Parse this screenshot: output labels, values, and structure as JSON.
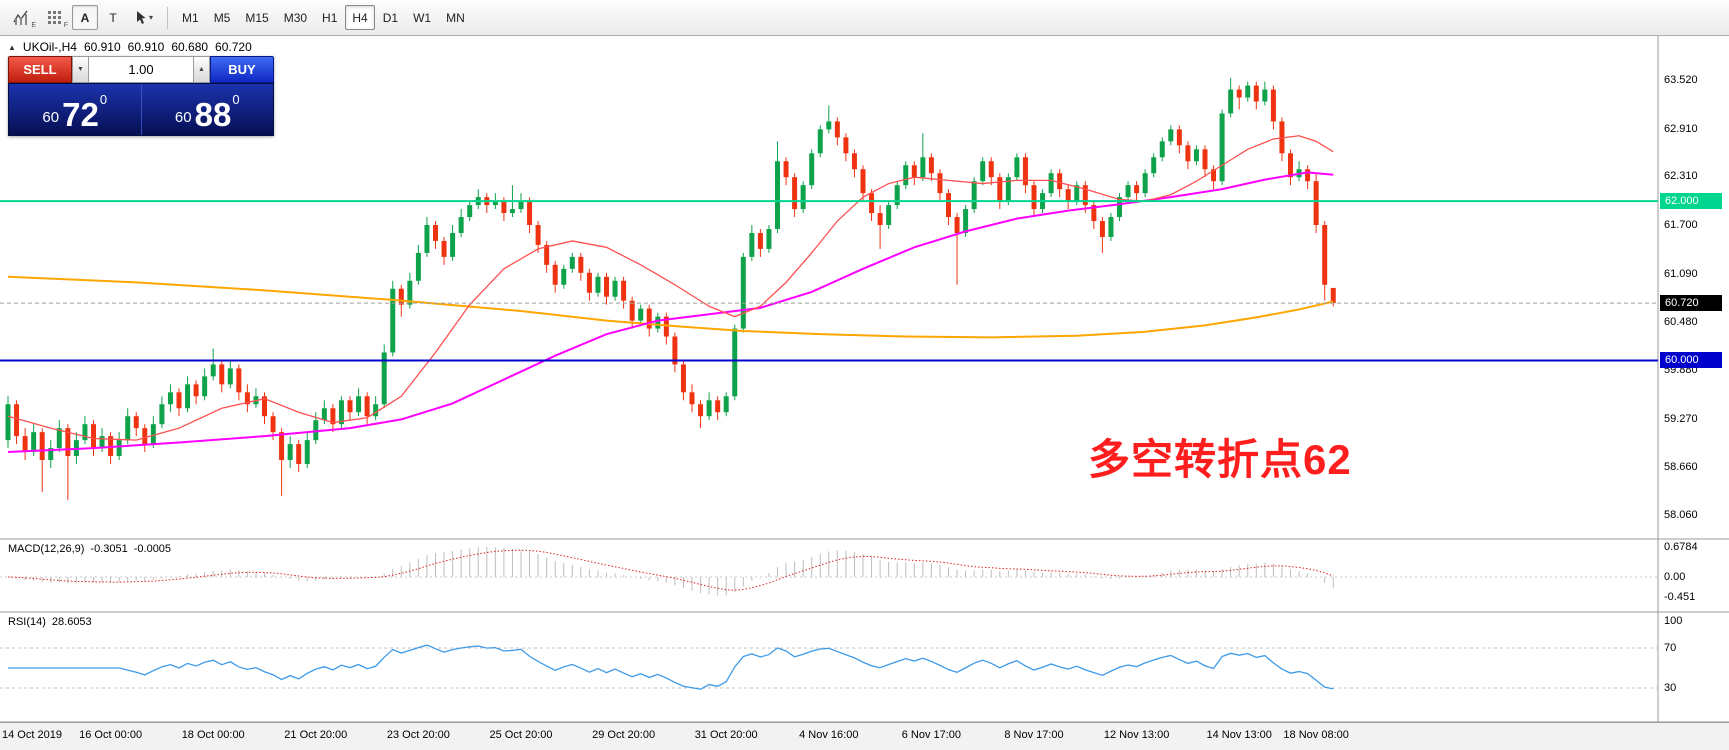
{
  "toolbar": {
    "icon_buttons": [
      {
        "name": "charts-icon",
        "sub": "E"
      },
      {
        "name": "grid-icon",
        "sub": "F"
      }
    ],
    "a_button": "A",
    "t_button": "T",
    "cursor_caret": "▾",
    "timeframes": [
      "M1",
      "M5",
      "M15",
      "M30",
      "H1",
      "H4",
      "D1",
      "W1",
      "MN"
    ],
    "active_timeframe": "H4"
  },
  "chart_header": {
    "marker": "▲",
    "symbol": "UKOil-,H4",
    "open": "60.910",
    "high": "60.910",
    "low": "60.680",
    "close": "60.720"
  },
  "trade_panel": {
    "sell_label": "SELL",
    "buy_label": "BUY",
    "volume": "1.00",
    "vol_down": "▼",
    "vol_up": "▲",
    "sell_price": {
      "small": "60",
      "big": "72",
      "sup": "0"
    },
    "buy_price": {
      "small": "60",
      "big": "88",
      "sup": "0"
    }
  },
  "annotation": {
    "text": "多空转折点62",
    "color": "#ff1e1e"
  },
  "price_axis": {
    "labels": [
      "63.520",
      "62.910",
      "62.310",
      "61.700",
      "61.090",
      "60.480",
      "59.880",
      "59.270",
      "58.660",
      "58.060"
    ],
    "tags": [
      {
        "text": "62.000",
        "bg": "#00d68f"
      },
      {
        "text": "60.000",
        "bg": "#0000cd"
      },
      {
        "text": "60.720",
        "bg": "#000000"
      }
    ]
  },
  "macd_panel": {
    "label": "MACD(12,26,9)",
    "value_main": "-0.3051",
    "value_signal": "-0.0005",
    "axis": [
      "0.6784",
      "0.00",
      "-0.451"
    ]
  },
  "rsi_panel": {
    "label": "RSI(14)",
    "value": "28.6053",
    "axis": [
      "100",
      "70",
      "30"
    ],
    "levels": [
      70,
      30
    ]
  },
  "time_axis": {
    "labels": [
      {
        "label": "14 Oct 2019",
        "i": 0
      },
      {
        "label": "16 Oct 00:00",
        "i": 12
      },
      {
        "label": "18 Oct 00:00",
        "i": 24
      },
      {
        "label": "21 Oct 20:00",
        "i": 36
      },
      {
        "label": "23 Oct 20:00",
        "i": 48
      },
      {
        "label": "25 Oct 20:00",
        "i": 60
      },
      {
        "label": "29 Oct 20:00",
        "i": 72
      },
      {
        "label": "31 Oct 20:00",
        "i": 84
      },
      {
        "label": "4 Nov 16:00",
        "i": 96
      },
      {
        "label": "6 Nov 17:00",
        "i": 108
      },
      {
        "label": "8 Nov 17:00",
        "i": 120
      },
      {
        "label": "12 Nov 13:00",
        "i": 132
      },
      {
        "label": "14 Nov 13:00",
        "i": 144
      },
      {
        "label": "18 Nov 08:00",
        "i": 153
      }
    ]
  },
  "chart_data": {
    "type": "candlestick",
    "symbol": "UKOil",
    "timeframe": "H4",
    "ylim": [
      57.76,
      64.07
    ],
    "ohlc": [
      [
        59.0,
        59.55,
        58.9,
        59.45
      ],
      [
        59.45,
        59.5,
        58.95,
        59.05
      ],
      [
        59.05,
        59.15,
        58.75,
        58.85
      ],
      [
        58.85,
        59.2,
        58.8,
        59.1
      ],
      [
        59.1,
        59.15,
        58.35,
        58.75
      ],
      [
        58.75,
        59.0,
        58.65,
        58.9
      ],
      [
        58.9,
        59.25,
        58.85,
        59.15
      ],
      [
        59.15,
        59.2,
        58.25,
        58.8
      ],
      [
        58.8,
        59.1,
        58.7,
        59.0
      ],
      [
        59.0,
        59.3,
        58.95,
        59.2
      ],
      [
        59.2,
        59.25,
        58.8,
        58.9
      ],
      [
        58.9,
        59.15,
        58.85,
        59.05
      ],
      [
        59.05,
        59.1,
        58.7,
        58.8
      ],
      [
        58.8,
        59.1,
        58.75,
        59.0
      ],
      [
        59.0,
        59.4,
        58.95,
        59.3
      ],
      [
        59.3,
        59.35,
        59.05,
        59.15
      ],
      [
        59.15,
        59.2,
        58.85,
        58.95
      ],
      [
        58.95,
        59.3,
        58.9,
        59.2
      ],
      [
        59.2,
        59.55,
        59.15,
        59.45
      ],
      [
        59.45,
        59.7,
        59.35,
        59.6
      ],
      [
        59.6,
        59.65,
        59.3,
        59.4
      ],
      [
        59.4,
        59.8,
        59.35,
        59.7
      ],
      [
        59.7,
        59.75,
        59.45,
        59.55
      ],
      [
        59.55,
        59.9,
        59.5,
        59.8
      ],
      [
        59.8,
        60.15,
        59.75,
        59.95
      ],
      [
        59.95,
        60.0,
        59.6,
        59.7
      ],
      [
        59.7,
        60.0,
        59.65,
        59.9
      ],
      [
        59.9,
        59.95,
        59.5,
        59.6
      ],
      [
        59.6,
        59.7,
        59.35,
        59.45
      ],
      [
        59.45,
        59.65,
        59.4,
        59.55
      ],
      [
        59.55,
        59.6,
        59.2,
        59.3
      ],
      [
        59.3,
        59.35,
        59.0,
        59.1
      ],
      [
        59.1,
        59.15,
        58.3,
        58.75
      ],
      [
        58.75,
        59.05,
        58.65,
        58.95
      ],
      [
        58.95,
        59.0,
        58.6,
        58.7
      ],
      [
        58.7,
        59.1,
        58.65,
        59.0
      ],
      [
        59.0,
        59.35,
        58.95,
        59.25
      ],
      [
        59.25,
        59.5,
        59.2,
        59.4
      ],
      [
        59.4,
        59.45,
        59.1,
        59.2
      ],
      [
        59.2,
        59.55,
        59.15,
        59.5
      ],
      [
        59.5,
        59.55,
        59.25,
        59.35
      ],
      [
        59.35,
        59.65,
        59.3,
        59.55
      ],
      [
        59.55,
        59.6,
        59.2,
        59.3
      ],
      [
        59.3,
        59.55,
        59.25,
        59.45
      ],
      [
        59.45,
        60.2,
        59.4,
        60.1
      ],
      [
        60.1,
        61.0,
        60.05,
        60.9
      ],
      [
        60.9,
        60.95,
        60.55,
        60.7
      ],
      [
        60.7,
        61.1,
        60.65,
        61.0
      ],
      [
        61.0,
        61.45,
        60.95,
        61.35
      ],
      [
        61.35,
        61.8,
        61.3,
        61.7
      ],
      [
        61.7,
        61.75,
        61.4,
        61.5
      ],
      [
        61.5,
        61.55,
        61.2,
        61.3
      ],
      [
        61.3,
        61.7,
        61.25,
        61.6
      ],
      [
        61.6,
        61.9,
        61.55,
        61.8
      ],
      [
        61.8,
        62.0,
        61.75,
        61.95
      ],
      [
        61.95,
        62.15,
        61.9,
        62.05
      ],
      [
        62.05,
        62.1,
        61.85,
        61.95
      ],
      [
        61.95,
        62.1,
        61.9,
        62.0
      ],
      [
        62.0,
        62.05,
        61.75,
        61.85
      ],
      [
        61.85,
        62.2,
        61.8,
        61.9
      ],
      [
        61.9,
        62.1,
        61.85,
        62.0
      ],
      [
        62.0,
        62.05,
        61.6,
        61.7
      ],
      [
        61.7,
        61.75,
        61.35,
        61.45
      ],
      [
        61.45,
        61.5,
        61.1,
        61.2
      ],
      [
        61.2,
        61.25,
        60.85,
        60.95
      ],
      [
        60.95,
        61.2,
        60.9,
        61.15
      ],
      [
        61.15,
        61.35,
        61.1,
        61.3
      ],
      [
        61.3,
        61.35,
        61.0,
        61.1
      ],
      [
        61.1,
        61.15,
        60.75,
        60.85
      ],
      [
        60.85,
        61.1,
        60.8,
        61.05
      ],
      [
        61.05,
        61.1,
        60.7,
        60.8
      ],
      [
        60.8,
        61.05,
        60.75,
        61.0
      ],
      [
        61.0,
        61.05,
        60.65,
        60.75
      ],
      [
        60.75,
        60.8,
        60.4,
        60.5
      ],
      [
        60.5,
        60.7,
        60.45,
        60.65
      ],
      [
        60.65,
        60.7,
        60.3,
        60.4
      ],
      [
        60.4,
        60.6,
        60.35,
        60.55
      ],
      [
        60.55,
        60.6,
        60.2,
        60.3
      ],
      [
        60.3,
        60.35,
        59.85,
        59.95
      ],
      [
        59.95,
        60.0,
        59.5,
        59.6
      ],
      [
        59.6,
        59.7,
        59.35,
        59.45
      ],
      [
        59.45,
        59.5,
        59.15,
        59.3
      ],
      [
        59.3,
        59.6,
        59.25,
        59.5
      ],
      [
        59.5,
        59.55,
        59.25,
        59.35
      ],
      [
        59.35,
        59.6,
        59.3,
        59.55
      ],
      [
        59.55,
        60.45,
        59.5,
        60.4
      ],
      [
        60.4,
        61.35,
        60.35,
        61.3
      ],
      [
        61.3,
        61.7,
        61.25,
        61.6
      ],
      [
        61.6,
        61.65,
        61.3,
        61.4
      ],
      [
        61.4,
        61.7,
        61.35,
        61.65
      ],
      [
        61.65,
        62.75,
        61.6,
        62.5
      ],
      [
        62.5,
        62.55,
        62.2,
        62.3
      ],
      [
        62.3,
        62.35,
        61.8,
        61.9
      ],
      [
        61.9,
        62.25,
        61.85,
        62.2
      ],
      [
        62.2,
        62.65,
        62.15,
        62.6
      ],
      [
        62.6,
        62.95,
        62.55,
        62.9
      ],
      [
        62.9,
        63.2,
        62.85,
        63.0
      ],
      [
        63.0,
        63.05,
        62.7,
        62.8
      ],
      [
        62.8,
        62.85,
        62.5,
        62.6
      ],
      [
        62.6,
        62.65,
        62.3,
        62.4
      ],
      [
        62.4,
        62.45,
        62.0,
        62.1
      ],
      [
        62.1,
        62.15,
        61.75,
        61.85
      ],
      [
        61.85,
        61.95,
        61.4,
        61.7
      ],
      [
        61.7,
        62.0,
        61.65,
        61.95
      ],
      [
        61.95,
        62.25,
        61.9,
        62.2
      ],
      [
        62.2,
        62.5,
        62.15,
        62.45
      ],
      [
        62.45,
        62.5,
        62.2,
        62.3
      ],
      [
        62.3,
        62.85,
        62.25,
        62.55
      ],
      [
        62.55,
        62.6,
        62.25,
        62.35
      ],
      [
        62.35,
        62.4,
        62.0,
        62.1
      ],
      [
        62.1,
        62.15,
        61.7,
        61.8
      ],
      [
        61.8,
        61.85,
        60.95,
        61.6
      ],
      [
        61.6,
        61.95,
        61.55,
        61.9
      ],
      [
        61.9,
        62.3,
        61.85,
        62.25
      ],
      [
        62.25,
        62.55,
        62.2,
        62.5
      ],
      [
        62.5,
        62.55,
        62.2,
        62.3
      ],
      [
        62.3,
        62.35,
        61.9,
        62.0
      ],
      [
        62.0,
        62.35,
        61.95,
        62.3
      ],
      [
        62.3,
        62.6,
        62.25,
        62.55
      ],
      [
        62.55,
        62.6,
        62.1,
        62.2
      ],
      [
        62.2,
        62.25,
        61.8,
        61.9
      ],
      [
        61.9,
        62.15,
        61.85,
        62.1
      ],
      [
        62.1,
        62.4,
        62.05,
        62.35
      ],
      [
        62.35,
        62.4,
        62.05,
        62.15
      ],
      [
        62.15,
        62.2,
        61.9,
        62.0
      ],
      [
        62.0,
        62.25,
        61.95,
        62.2
      ],
      [
        62.2,
        62.25,
        61.85,
        61.95
      ],
      [
        61.95,
        62.0,
        61.65,
        61.75
      ],
      [
        61.75,
        61.8,
        61.35,
        61.55
      ],
      [
        61.55,
        61.85,
        61.5,
        61.8
      ],
      [
        61.8,
        62.1,
        61.75,
        62.05
      ],
      [
        62.05,
        62.25,
        62.0,
        62.2
      ],
      [
        62.2,
        62.25,
        62.0,
        62.1
      ],
      [
        62.1,
        62.4,
        62.05,
        62.35
      ],
      [
        62.35,
        62.6,
        62.3,
        62.55
      ],
      [
        62.55,
        62.8,
        62.5,
        62.75
      ],
      [
        62.75,
        62.95,
        62.7,
        62.9
      ],
      [
        62.9,
        62.95,
        62.6,
        62.7
      ],
      [
        62.7,
        62.75,
        62.4,
        62.5
      ],
      [
        62.5,
        62.7,
        62.45,
        62.65
      ],
      [
        62.65,
        62.7,
        62.3,
        62.4
      ],
      [
        62.4,
        62.45,
        62.15,
        62.25
      ],
      [
        62.25,
        63.15,
        62.2,
        63.1
      ],
      [
        63.1,
        63.55,
        63.05,
        63.4
      ],
      [
        63.4,
        63.45,
        63.15,
        63.3
      ],
      [
        63.3,
        63.5,
        63.25,
        63.45
      ],
      [
        63.45,
        63.5,
        63.15,
        63.25
      ],
      [
        63.25,
        63.5,
        63.2,
        63.4
      ],
      [
        63.4,
        63.45,
        62.9,
        63.0
      ],
      [
        63.0,
        63.05,
        62.5,
        62.6
      ],
      [
        62.6,
        62.65,
        62.2,
        62.3
      ],
      [
        62.3,
        62.5,
        62.25,
        62.4
      ],
      [
        62.4,
        62.45,
        62.15,
        62.25
      ],
      [
        62.25,
        62.35,
        61.6,
        61.7
      ],
      [
        61.7,
        61.75,
        60.75,
        60.95
      ],
      [
        60.91,
        60.91,
        60.68,
        60.72
      ]
    ],
    "ma_orange": [
      [
        0,
        61.05
      ],
      [
        15,
        60.98
      ],
      [
        30,
        60.88
      ],
      [
        45,
        60.76
      ],
      [
        60,
        60.62
      ],
      [
        70,
        60.5
      ],
      [
        78,
        60.43
      ],
      [
        86,
        60.37
      ],
      [
        95,
        60.33
      ],
      [
        105,
        60.3
      ],
      [
        115,
        60.29
      ],
      [
        125,
        60.31
      ],
      [
        133,
        60.36
      ],
      [
        140,
        60.44
      ],
      [
        146,
        60.54
      ],
      [
        151,
        60.64
      ],
      [
        155,
        60.74
      ]
    ],
    "ma_magenta": [
      [
        0,
        58.85
      ],
      [
        10,
        58.9
      ],
      [
        20,
        58.97
      ],
      [
        30,
        59.05
      ],
      [
        40,
        59.15
      ],
      [
        46,
        59.26
      ],
      [
        52,
        59.46
      ],
      [
        58,
        59.76
      ],
      [
        64,
        60.06
      ],
      [
        70,
        60.33
      ],
      [
        76,
        60.5
      ],
      [
        82,
        60.58
      ],
      [
        88,
        60.66
      ],
      [
        94,
        60.86
      ],
      [
        100,
        61.15
      ],
      [
        106,
        61.42
      ],
      [
        112,
        61.62
      ],
      [
        118,
        61.78
      ],
      [
        124,
        61.88
      ],
      [
        130,
        61.96
      ],
      [
        136,
        62.05
      ],
      [
        142,
        62.15
      ],
      [
        147,
        62.27
      ],
      [
        152,
        62.36
      ],
      [
        155,
        62.33
      ]
    ],
    "ma_red": [
      [
        0,
        59.3
      ],
      [
        5,
        59.15
      ],
      [
        10,
        59.02
      ],
      [
        15,
        59.0
      ],
      [
        20,
        59.15
      ],
      [
        25,
        59.4
      ],
      [
        30,
        59.52
      ],
      [
        34,
        59.35
      ],
      [
        38,
        59.22
      ],
      [
        42,
        59.28
      ],
      [
        46,
        59.55
      ],
      [
        50,
        60.1
      ],
      [
        54,
        60.7
      ],
      [
        58,
        61.15
      ],
      [
        62,
        61.4
      ],
      [
        66,
        61.5
      ],
      [
        70,
        61.42
      ],
      [
        74,
        61.2
      ],
      [
        78,
        60.95
      ],
      [
        82,
        60.68
      ],
      [
        85,
        60.55
      ],
      [
        88,
        60.68
      ],
      [
        91,
        60.98
      ],
      [
        94,
        61.35
      ],
      [
        97,
        61.75
      ],
      [
        100,
        62.05
      ],
      [
        103,
        62.22
      ],
      [
        106,
        62.3
      ],
      [
        110,
        62.26
      ],
      [
        114,
        62.22
      ],
      [
        118,
        62.26
      ],
      [
        122,
        62.26
      ],
      [
        126,
        62.15
      ],
      [
        130,
        62.02
      ],
      [
        133,
        62.0
      ],
      [
        136,
        62.08
      ],
      [
        139,
        62.25
      ],
      [
        142,
        62.45
      ],
      [
        145,
        62.65
      ],
      [
        148,
        62.78
      ],
      [
        151,
        62.82
      ],
      [
        153,
        62.75
      ],
      [
        155,
        62.62
      ]
    ],
    "hlines": [
      {
        "price": 62.0,
        "color": "#00d68f",
        "width": 2
      },
      {
        "price": 60.0,
        "color": "#0000cd",
        "width": 2
      },
      {
        "price": 60.72,
        "color": "#9e9e9e",
        "width": 1,
        "dash": "4,3"
      }
    ],
    "colors": {
      "up": "#0ea24a",
      "down": "#ef3311",
      "macd_hist": "#bdbdbd",
      "macd_signal": "#e02020",
      "rsi": "#3d9ae8",
      "ma_orange": "#ffa500",
      "ma_magenta": "#ff00ff",
      "ma_red": "#ff5050"
    }
  }
}
